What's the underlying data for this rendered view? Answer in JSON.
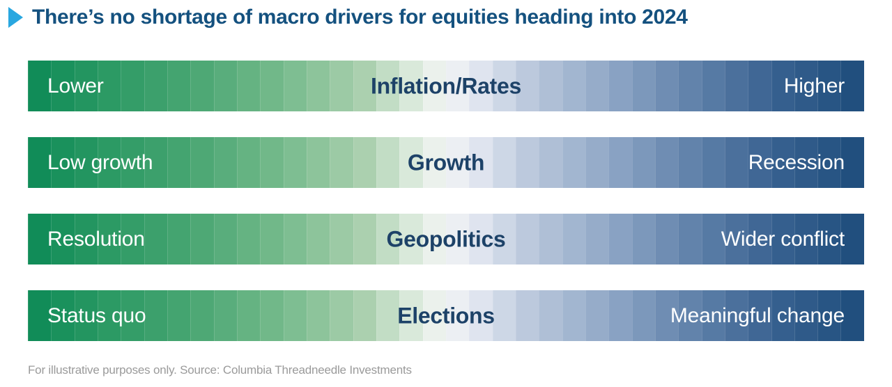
{
  "title": {
    "text": "There’s no shortage of macro drivers for equities heading into 2024",
    "arrow_icon": "play-triangle"
  },
  "colors": {
    "title": "#14517f",
    "arrow": "#29a7e0",
    "bar_center_label": "#1d4268",
    "bar_side_label": "#ffffff",
    "footer": "#9a9a9a"
  },
  "chart_data": {
    "type": "diverging-gradient-bars",
    "description": "Qualitative spectrum bars for macro drivers, shading from green (benign outcome, left) through white to dark blue (adverse outcome, right)",
    "bars": [
      {
        "driver": "Inflation/Rates",
        "left_end": "Lower",
        "right_end": "Higher"
      },
      {
        "driver": "Growth",
        "left_end": "Low growth",
        "right_end": "Recession"
      },
      {
        "driver": "Geopolitics",
        "left_end": "Resolution",
        "right_end": "Wider conflict"
      },
      {
        "driver": "Elections",
        "left_end": "Status quo",
        "right_end": "Meaningful change"
      }
    ],
    "band_count": 36,
    "gradient_stops": [
      {
        "pos": 0.0,
        "color": "#0d8a56"
      },
      {
        "pos": 0.1,
        "color": "#2d9a64"
      },
      {
        "pos": 0.2,
        "color": "#4aa673"
      },
      {
        "pos": 0.3,
        "color": "#74ba8b"
      },
      {
        "pos": 0.4,
        "color": "#a9cfad"
      },
      {
        "pos": 0.47,
        "color": "#e3eee3"
      },
      {
        "pos": 0.5,
        "color": "#f2f4f3"
      },
      {
        "pos": 0.53,
        "color": "#e6eaf3"
      },
      {
        "pos": 0.6,
        "color": "#bac8dc"
      },
      {
        "pos": 0.7,
        "color": "#8da5c5"
      },
      {
        "pos": 0.8,
        "color": "#5e80a9"
      },
      {
        "pos": 0.9,
        "color": "#365f8e"
      },
      {
        "pos": 1.0,
        "color": "#1e4d7c"
      }
    ]
  },
  "footer": {
    "text": "For illustrative purposes only. Source: Columbia Threadneedle Investments"
  }
}
